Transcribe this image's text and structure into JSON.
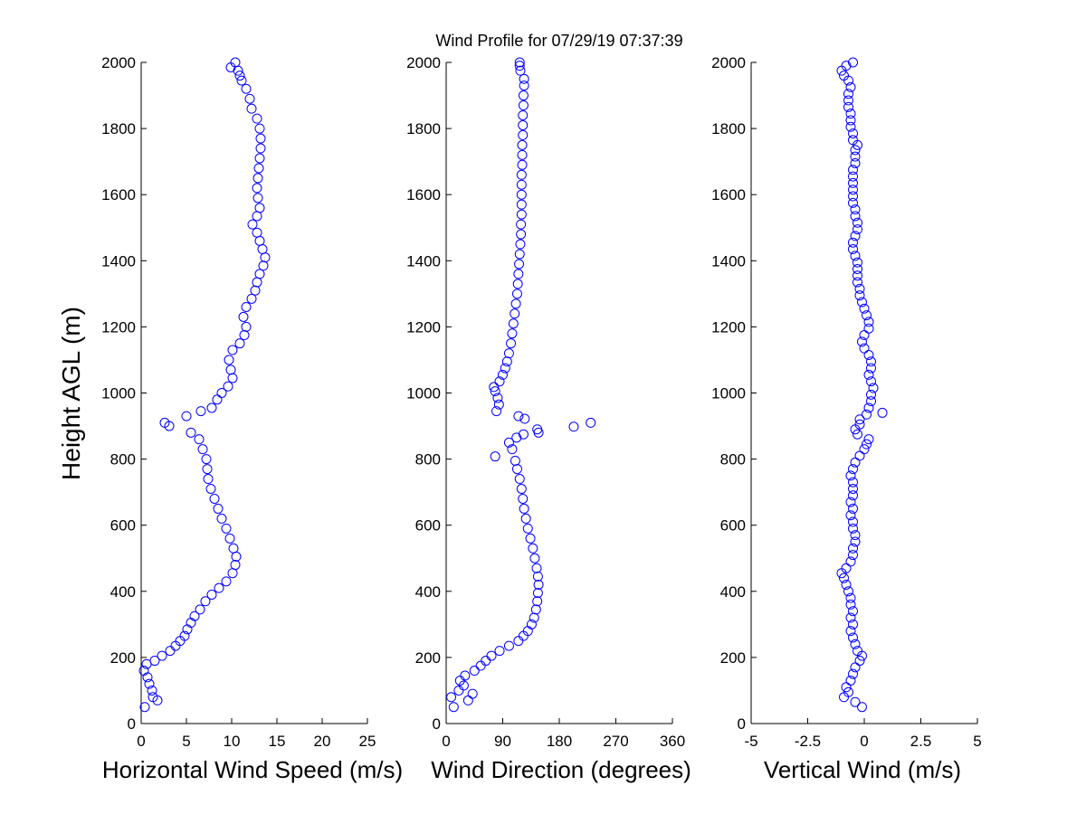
{
  "chart_data": [
    {
      "type": "scatter",
      "title": "Wind Profile for  07/29/19 07:37:39",
      "xlabel": "Horizontal Wind Speed (m/s)",
      "ylabel": "Height AGL (m)",
      "xlim": [
        0,
        25
      ],
      "ylim": [
        0,
        2000
      ],
      "xticks": [
        0,
        5,
        10,
        15,
        20,
        25
      ],
      "xtick_labels": [
        "0",
        "5",
        "10",
        "15",
        "20",
        "25"
      ],
      "yticks": [
        0,
        200,
        400,
        600,
        800,
        1000,
        1200,
        1400,
        1600,
        1800,
        2000
      ],
      "ytick_labels": [
        "0",
        "200",
        "400",
        "600",
        "800",
        "1000",
        "1200",
        "1400",
        "1600",
        "1800",
        "2000"
      ],
      "marker": "open-circle",
      "color": "#0000ff",
      "points": [
        [
          0.4,
          50
        ],
        [
          1.8,
          70
        ],
        [
          1.3,
          80
        ],
        [
          1.2,
          100
        ],
        [
          0.9,
          120
        ],
        [
          0.7,
          140
        ],
        [
          0.3,
          160
        ],
        [
          0.6,
          180
        ],
        [
          1.5,
          190
        ],
        [
          2.3,
          205
        ],
        [
          3.2,
          220
        ],
        [
          3.8,
          235
        ],
        [
          4.3,
          250
        ],
        [
          4.8,
          265
        ],
        [
          5.1,
          285
        ],
        [
          5.5,
          305
        ],
        [
          5.9,
          325
        ],
        [
          6.5,
          345
        ],
        [
          7.1,
          370
        ],
        [
          7.8,
          390
        ],
        [
          8.6,
          410
        ],
        [
          9.4,
          430
        ],
        [
          10.1,
          455
        ],
        [
          10.4,
          480
        ],
        [
          10.5,
          505
        ],
        [
          10.2,
          530
        ],
        [
          9.8,
          560
        ],
        [
          9.4,
          590
        ],
        [
          8.9,
          620
        ],
        [
          8.5,
          650
        ],
        [
          8.1,
          680
        ],
        [
          7.7,
          710
        ],
        [
          7.4,
          740
        ],
        [
          7.3,
          770
        ],
        [
          7.2,
          800
        ],
        [
          6.8,
          830
        ],
        [
          6.4,
          860
        ],
        [
          5.5,
          880
        ],
        [
          3.1,
          900
        ],
        [
          2.6,
          910
        ],
        [
          5.0,
          930
        ],
        [
          6.6,
          945
        ],
        [
          7.8,
          955
        ],
        [
          8.4,
          980
        ],
        [
          8.9,
          1000
        ],
        [
          9.6,
          1020
        ],
        [
          10.1,
          1045
        ],
        [
          9.9,
          1070
        ],
        [
          9.7,
          1100
        ],
        [
          10.1,
          1130
        ],
        [
          10.9,
          1150
        ],
        [
          11.4,
          1175
        ],
        [
          11.6,
          1200
        ],
        [
          11.3,
          1230
        ],
        [
          11.6,
          1260
        ],
        [
          12.2,
          1285
        ],
        [
          12.6,
          1310
        ],
        [
          12.8,
          1335
        ],
        [
          13.1,
          1360
        ],
        [
          13.5,
          1385
        ],
        [
          13.7,
          1410
        ],
        [
          13.4,
          1435
        ],
        [
          13.1,
          1460
        ],
        [
          12.8,
          1485
        ],
        [
          12.3,
          1510
        ],
        [
          12.8,
          1535
        ],
        [
          13.1,
          1560
        ],
        [
          12.9,
          1590
        ],
        [
          12.8,
          1620
        ],
        [
          12.9,
          1650
        ],
        [
          13.0,
          1680
        ],
        [
          13.1,
          1710
        ],
        [
          13.2,
          1740
        ],
        [
          13.2,
          1770
        ],
        [
          13.1,
          1800
        ],
        [
          12.8,
          1830
        ],
        [
          12.2,
          1860
        ],
        [
          12.0,
          1890
        ],
        [
          11.6,
          1920
        ],
        [
          11.1,
          1945
        ],
        [
          10.9,
          1960
        ],
        [
          10.7,
          1975
        ],
        [
          9.9,
          1985
        ],
        [
          10.4,
          2000
        ]
      ]
    },
    {
      "type": "scatter",
      "xlabel": "Wind Direction (degrees)",
      "ylabel": "",
      "xlim": [
        0,
        360
      ],
      "ylim": [
        0,
        2000
      ],
      "xticks": [
        0,
        90,
        180,
        270,
        360
      ],
      "xtick_labels": [
        "0",
        "90",
        "180",
        "270",
        "360"
      ],
      "yticks": [
        0,
        200,
        400,
        600,
        800,
        1000,
        1200,
        1400,
        1600,
        1800,
        2000
      ],
      "ytick_labels": [
        "0",
        "200",
        "400",
        "600",
        "800",
        "1000",
        "1200",
        "1400",
        "1600",
        "1800",
        "2000"
      ],
      "marker": "open-circle",
      "color": "#0000ff",
      "points": [
        [
          12,
          50
        ],
        [
          35,
          70
        ],
        [
          8,
          80
        ],
        [
          42,
          90
        ],
        [
          20,
          100
        ],
        [
          28,
          115
        ],
        [
          22,
          130
        ],
        [
          30,
          145
        ],
        [
          45,
          160
        ],
        [
          55,
          175
        ],
        [
          63,
          190
        ],
        [
          72,
          205
        ],
        [
          85,
          220
        ],
        [
          100,
          235
        ],
        [
          115,
          250
        ],
        [
          123,
          265
        ],
        [
          130,
          280
        ],
        [
          136,
          300
        ],
        [
          140,
          320
        ],
        [
          143,
          345
        ],
        [
          145,
          370
        ],
        [
          146,
          395
        ],
        [
          147,
          420
        ],
        [
          146,
          445
        ],
        [
          144,
          470
        ],
        [
          141,
          500
        ],
        [
          138,
          530
        ],
        [
          134,
          560
        ],
        [
          130,
          590
        ],
        [
          127,
          620
        ],
        [
          124,
          650
        ],
        [
          122,
          680
        ],
        [
          120,
          710
        ],
        [
          117,
          740
        ],
        [
          113,
          770
        ],
        [
          110,
          795
        ],
        [
          78,
          808
        ],
        [
          105,
          830
        ],
        [
          100,
          850
        ],
        [
          112,
          865
        ],
        [
          123,
          875
        ],
        [
          147,
          880
        ],
        [
          145,
          890
        ],
        [
          203,
          898
        ],
        [
          230,
          910
        ],
        [
          125,
          922
        ],
        [
          115,
          930
        ],
        [
          80,
          945
        ],
        [
          84,
          965
        ],
        [
          82,
          985
        ],
        [
          78,
          1005
        ],
        [
          76,
          1018
        ],
        [
          85,
          1035
        ],
        [
          90,
          1055
        ],
        [
          94,
          1075
        ],
        [
          97,
          1095
        ],
        [
          100,
          1120
        ],
        [
          103,
          1150
        ],
        [
          105,
          1180
        ],
        [
          107,
          1210
        ],
        [
          109,
          1240
        ],
        [
          111,
          1270
        ],
        [
          113,
          1300
        ],
        [
          114,
          1330
        ],
        [
          115,
          1360
        ],
        [
          116,
          1390
        ],
        [
          117,
          1420
        ],
        [
          118,
          1450
        ],
        [
          119,
          1480
        ],
        [
          119,
          1510
        ],
        [
          120,
          1540
        ],
        [
          120,
          1570
        ],
        [
          120,
          1600
        ],
        [
          120,
          1630
        ],
        [
          120,
          1660
        ],
        [
          121,
          1690
        ],
        [
          121,
          1720
        ],
        [
          121,
          1750
        ],
        [
          122,
          1780
        ],
        [
          122,
          1810
        ],
        [
          122,
          1840
        ],
        [
          123,
          1870
        ],
        [
          123,
          1900
        ],
        [
          124,
          1930
        ],
        [
          124,
          1950
        ],
        [
          118,
          1975
        ],
        [
          117,
          1990
        ],
        [
          117,
          2000
        ]
      ]
    },
    {
      "type": "scatter",
      "xlabel": "Vertical Wind (m/s)",
      "ylabel": "",
      "xlim": [
        -5,
        5
      ],
      "ylim": [
        0,
        2000
      ],
      "xticks": [
        -5,
        -2.5,
        0,
        2.5,
        5
      ],
      "xtick_labels": [
        "-5",
        "-2.5",
        "0",
        "2.5",
        "5"
      ],
      "yticks": [
        0,
        200,
        400,
        600,
        800,
        1000,
        1200,
        1400,
        1600,
        1800,
        2000
      ],
      "ytick_labels": [
        "0",
        "200",
        "400",
        "600",
        "800",
        "1000",
        "1200",
        "1400",
        "1600",
        "1800",
        "2000"
      ],
      "marker": "open-circle",
      "color": "#0000ff",
      "points": [
        [
          -0.1,
          50
        ],
        [
          -0.4,
          65
        ],
        [
          -0.9,
          80
        ],
        [
          -0.7,
          95
        ],
        [
          -0.8,
          110
        ],
        [
          -0.6,
          130
        ],
        [
          -0.5,
          150
        ],
        [
          -0.4,
          170
        ],
        [
          -0.2,
          190
        ],
        [
          -0.1,
          205
        ],
        [
          -0.3,
          220
        ],
        [
          -0.4,
          240
        ],
        [
          -0.5,
          260
        ],
        [
          -0.6,
          280
        ],
        [
          -0.5,
          300
        ],
        [
          -0.6,
          320
        ],
        [
          -0.5,
          340
        ],
        [
          -0.6,
          360
        ],
        [
          -0.6,
          380
        ],
        [
          -0.7,
          400
        ],
        [
          -0.8,
          420
        ],
        [
          -0.9,
          440
        ],
        [
          -1.0,
          455
        ],
        [
          -0.8,
          470
        ],
        [
          -0.6,
          490
        ],
        [
          -0.5,
          510
        ],
        [
          -0.5,
          530
        ],
        [
          -0.4,
          550
        ],
        [
          -0.4,
          570
        ],
        [
          -0.5,
          590
        ],
        [
          -0.5,
          610
        ],
        [
          -0.6,
          630
        ],
        [
          -0.5,
          650
        ],
        [
          -0.6,
          670
        ],
        [
          -0.5,
          690
        ],
        [
          -0.5,
          710
        ],
        [
          -0.5,
          730
        ],
        [
          -0.6,
          750
        ],
        [
          -0.5,
          770
        ],
        [
          -0.4,
          790
        ],
        [
          -0.2,
          810
        ],
        [
          0.0,
          830
        ],
        [
          0.1,
          845
        ],
        [
          0.2,
          860
        ],
        [
          -0.3,
          875
        ],
        [
          -0.4,
          890
        ],
        [
          -0.2,
          905
        ],
        [
          -0.2,
          920
        ],
        [
          0.1,
          935
        ],
        [
          0.8,
          940
        ],
        [
          0.2,
          955
        ],
        [
          0.3,
          975
        ],
        [
          0.3,
          995
        ],
        [
          0.4,
          1015
        ],
        [
          0.3,
          1035
        ],
        [
          0.2,
          1055
        ],
        [
          0.3,
          1075
        ],
        [
          0.3,
          1095
        ],
        [
          0.2,
          1115
        ],
        [
          0.0,
          1135
        ],
        [
          -0.1,
          1155
        ],
        [
          0.0,
          1175
        ],
        [
          0.2,
          1195
        ],
        [
          0.2,
          1215
        ],
        [
          0.1,
          1235
        ],
        [
          0.0,
          1255
        ],
        [
          -0.1,
          1275
        ],
        [
          -0.2,
          1295
        ],
        [
          -0.2,
          1315
        ],
        [
          -0.3,
          1335
        ],
        [
          -0.3,
          1355
        ],
        [
          -0.3,
          1375
        ],
        [
          -0.3,
          1395
        ],
        [
          -0.4,
          1415
        ],
        [
          -0.5,
          1435
        ],
        [
          -0.5,
          1455
        ],
        [
          -0.4,
          1475
        ],
        [
          -0.3,
          1495
        ],
        [
          -0.3,
          1515
        ],
        [
          -0.4,
          1535
        ],
        [
          -0.4,
          1555
        ],
        [
          -0.5,
          1575
        ],
        [
          -0.5,
          1595
        ],
        [
          -0.5,
          1615
        ],
        [
          -0.5,
          1635
        ],
        [
          -0.5,
          1655
        ],
        [
          -0.5,
          1675
        ],
        [
          -0.4,
          1695
        ],
        [
          -0.4,
          1715
        ],
        [
          -0.4,
          1735
        ],
        [
          -0.3,
          1750
        ],
        [
          -0.5,
          1765
        ],
        [
          -0.5,
          1785
        ],
        [
          -0.6,
          1805
        ],
        [
          -0.6,
          1825
        ],
        [
          -0.6,
          1845
        ],
        [
          -0.7,
          1865
        ],
        [
          -0.7,
          1885
        ],
        [
          -0.7,
          1905
        ],
        [
          -0.6,
          1925
        ],
        [
          -0.7,
          1945
        ],
        [
          -0.9,
          1960
        ],
        [
          -1.0,
          1975
        ],
        [
          -0.8,
          1990
        ],
        [
          -0.5,
          2000
        ]
      ]
    }
  ]
}
